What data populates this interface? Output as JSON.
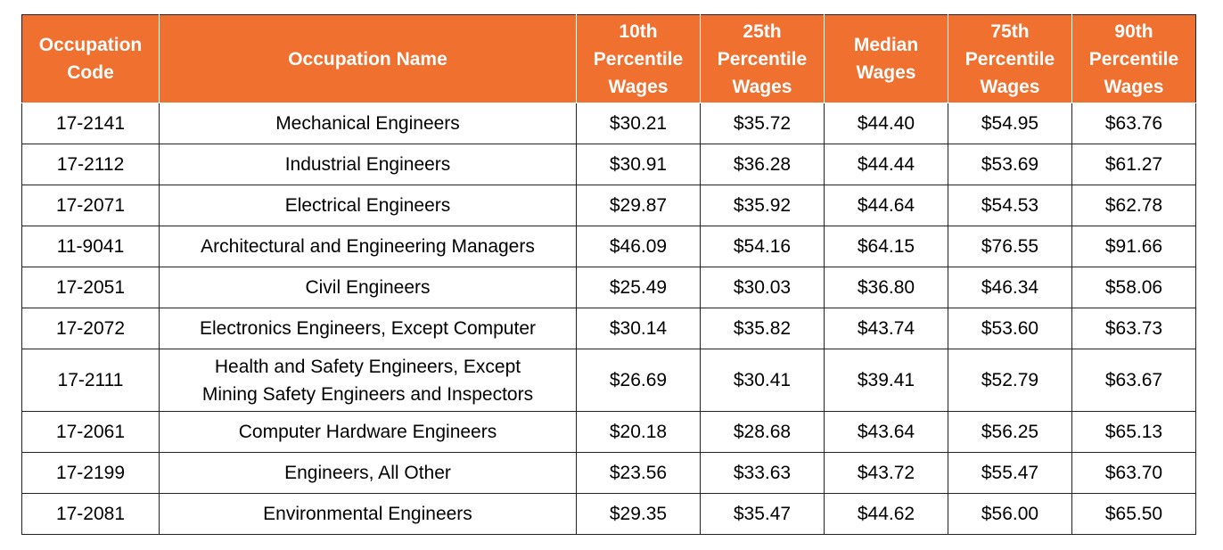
{
  "table": {
    "headers": [
      {
        "lines": [
          "Occupation",
          "Code"
        ]
      },
      {
        "lines": [
          "Occupation Name"
        ]
      },
      {
        "lines": [
          "10th",
          "Percentile",
          "Wages"
        ]
      },
      {
        "lines": [
          "25th",
          "Percentile",
          "Wages"
        ]
      },
      {
        "lines": [
          "Median",
          "Wages"
        ]
      },
      {
        "lines": [
          "75th",
          "Percentile",
          "Wages"
        ]
      },
      {
        "lines": [
          "90th",
          "Percentile",
          "Wages"
        ]
      }
    ],
    "rows": [
      {
        "code": "17-2141",
        "name": [
          "Mechanical Engineers"
        ],
        "p10": "$30.21",
        "p25": "$35.72",
        "median": "$44.40",
        "p75": "$54.95",
        "p90": "$63.76"
      },
      {
        "code": "17-2112",
        "name": [
          "Industrial Engineers"
        ],
        "p10": "$30.91",
        "p25": "$36.28",
        "median": "$44.44",
        "p75": "$53.69",
        "p90": "$61.27"
      },
      {
        "code": "17-2071",
        "name": [
          "Electrical Engineers"
        ],
        "p10": "$29.87",
        "p25": "$35.92",
        "median": "$44.64",
        "p75": "$54.53",
        "p90": "$62.78"
      },
      {
        "code": "11-9041",
        "name": [
          "Architectural and Engineering Managers"
        ],
        "p10": "$46.09",
        "p25": "$54.16",
        "median": "$64.15",
        "p75": "$76.55",
        "p90": "$91.66"
      },
      {
        "code": "17-2051",
        "name": [
          "Civil Engineers"
        ],
        "p10": "$25.49",
        "p25": "$30.03",
        "median": "$36.80",
        "p75": "$46.34",
        "p90": "$58.06"
      },
      {
        "code": "17-2072",
        "name": [
          "Electronics Engineers, Except Computer"
        ],
        "p10": "$30.14",
        "p25": "$35.82",
        "median": "$43.74",
        "p75": "$53.60",
        "p90": "$63.73"
      },
      {
        "code": "17-2111",
        "name": [
          "Health and Safety Engineers, Except",
          "Mining Safety Engineers and Inspectors"
        ],
        "p10": "$26.69",
        "p25": "$30.41",
        "median": "$39.41",
        "p75": "$52.79",
        "p90": "$63.67"
      },
      {
        "code": "17-2061",
        "name": [
          "Computer Hardware Engineers"
        ],
        "p10": "$20.18",
        "p25": "$28.68",
        "median": "$43.64",
        "p75": "$56.25",
        "p90": "$65.13"
      },
      {
        "code": "17-2199",
        "name": [
          "Engineers, All Other"
        ],
        "p10": "$23.56",
        "p25": "$33.63",
        "median": "$43.72",
        "p75": "$55.47",
        "p90": "$63.70"
      },
      {
        "code": "17-2081",
        "name": [
          "Environmental Engineers"
        ],
        "p10": "$29.35",
        "p25": "$35.47",
        "median": "$44.62",
        "p75": "$56.00",
        "p90": "$65.50"
      }
    ]
  },
  "colors": {
    "header_bg": "#f07030",
    "header_text": "#ffffff",
    "grid": "#222222"
  }
}
